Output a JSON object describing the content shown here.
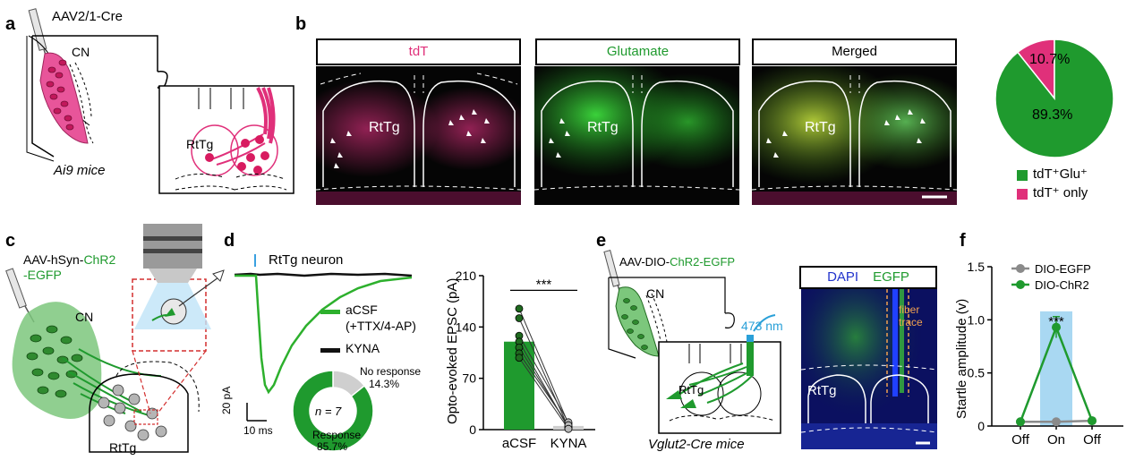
{
  "panels": {
    "a": {
      "label": "a",
      "virus": "AAV2/1-Cre",
      "region1": "CN",
      "region2": "RtTg",
      "mice": "Ai9 mice"
    },
    "b": {
      "label": "b",
      "channels": [
        "tdT",
        "Glutamate",
        "Merged"
      ],
      "region": "RtTg",
      "legend": [
        {
          "label": "tdT⁺Glu⁺",
          "color": "#1f9a2e"
        },
        {
          "label": "tdT⁺ only",
          "color": "#e0307a"
        }
      ]
    },
    "c": {
      "label": "c",
      "virus_prefix": "AAV-hSyn-",
      "virus_colored": "ChR2",
      "virus_line2": "-EGFP",
      "region1": "CN",
      "region2": "RtTg"
    },
    "d": {
      "label": "d",
      "title": "RtTg neuron",
      "legend_acsf_line1": "aCSF",
      "legend_acsf_line2": "(+TTX/4-AP)",
      "legend_kyna": "KYNA",
      "scale_y": "20 pA",
      "scale_x": "10 ms",
      "donut_n": "n = 7",
      "no_response_label": "No response",
      "no_response_pct": "14.3%",
      "response_label": "Response",
      "response_pct": "85.7%",
      "bar_ylabel": "Opto-evoked EPSC (pA)",
      "significance": "***"
    },
    "e": {
      "label": "e",
      "virus_prefix": "AAV-DIO-",
      "virus_colored": "ChR2-EGFP",
      "region1": "CN",
      "region2": "RtTg",
      "light": "473 nm",
      "mice": "Vglut2-Cre mice",
      "stain1": "DAPI",
      "stain2": "EGFP",
      "fiber": "fiber",
      "trace": "trace",
      "region_img": "RtTg"
    },
    "f": {
      "label": "f",
      "significance": "***"
    }
  },
  "chart_data": [
    {
      "type": "pie",
      "panel": "b",
      "slices": [
        {
          "label": "tdT⁺Glu⁺",
          "value": 89.3,
          "text": "89.3%",
          "color": "#1f9a2e"
        },
        {
          "label": "tdT⁺ only",
          "value": 10.7,
          "text": "10.7%",
          "color": "#e0307a"
        }
      ]
    },
    {
      "type": "pie",
      "panel": "d",
      "donut": true,
      "slices": [
        {
          "label": "Response",
          "value": 85.7,
          "color": "#1f9a2e"
        },
        {
          "label": "No response",
          "value": 14.3,
          "color": "#cfcfcf"
        }
      ]
    },
    {
      "type": "bar",
      "panel": "d",
      "categories": [
        "aCSF",
        "KYNA"
      ],
      "values": [
        120,
        5
      ],
      "ylabel": "Opto-evoked EPSC (pA)",
      "ylim": [
        0,
        210
      ],
      "yticks": [
        0,
        70,
        140,
        210
      ],
      "paired_points": [
        [
          165,
          8
        ],
        [
          152,
          3
        ],
        [
          128,
          10
        ],
        [
          120,
          2
        ],
        [
          112,
          4
        ],
        [
          104,
          6
        ],
        [
          98,
          1
        ]
      ],
      "significance": "***",
      "colors": {
        "aCSF": "#1f9a2e",
        "KYNA": "#cfcfcf"
      }
    },
    {
      "type": "line",
      "panel": "f",
      "categories": [
        "Off",
        "On",
        "Off"
      ],
      "ylabel": "Startle amplitude (v)",
      "ylim": [
        0,
        1.5
      ],
      "yticks": [
        0,
        0.5,
        1.0,
        1.5
      ],
      "ytick_labels": [
        "0",
        "0.5",
        "1.0",
        "1.5"
      ],
      "series": [
        {
          "name": "DIO-EGFP",
          "values": [
            0.04,
            0.04,
            0.05
          ],
          "color": "#8a8a8a"
        },
        {
          "name": "DIO-ChR2",
          "values": [
            0.04,
            0.93,
            0.05
          ],
          "errors": [
            0,
            0.1,
            0
          ],
          "color": "#1f9a2e"
        }
      ],
      "highlight": "On",
      "highlight_color": "#a9d8f2",
      "significance": "***"
    }
  ]
}
